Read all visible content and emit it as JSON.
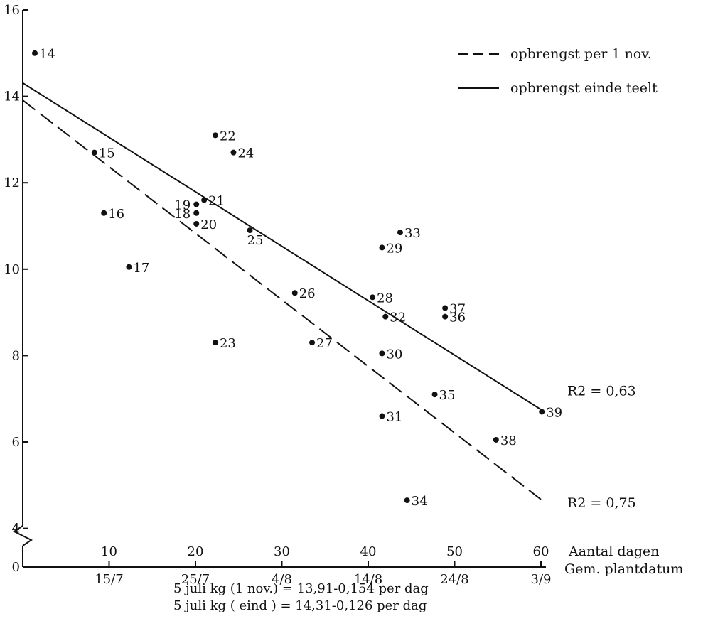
{
  "chart_data": {
    "type": "scatter",
    "x_axis": {
      "primary_ticks": [
        "10",
        "20",
        "30",
        "40",
        "50",
        "60"
      ],
      "primary_title": "Aantal dagen",
      "secondary_ticks": [
        "15/7",
        "25/7",
        "4/8",
        "14/8",
        "24/8",
        "3/9"
      ],
      "secondary_title": "Gem. plantdatum",
      "range": [
        0,
        61
      ]
    },
    "y_axis": {
      "ticks": [
        "16",
        "14",
        "12",
        "10",
        "8",
        "6",
        "4",
        "0"
      ],
      "range": [
        4,
        16
      ],
      "broken": true
    },
    "points": [
      {
        "label": "14",
        "x": 1.4,
        "y": 15.0
      },
      {
        "label": "15",
        "x": 8.3,
        "y": 12.7
      },
      {
        "label": "16",
        "x": 9.4,
        "y": 11.3
      },
      {
        "label": "17",
        "x": 12.3,
        "y": 10.05
      },
      {
        "label": "18",
        "x": 20.1,
        "y": 11.3
      },
      {
        "label": "19",
        "x": 20.1,
        "y": 11.5
      },
      {
        "label": "20",
        "x": 20.1,
        "y": 11.05
      },
      {
        "label": "21",
        "x": 21.0,
        "y": 11.6
      },
      {
        "label": "22",
        "x": 22.3,
        "y": 13.1
      },
      {
        "label": "23",
        "x": 22.3,
        "y": 8.3
      },
      {
        "label": "24",
        "x": 24.4,
        "y": 12.7
      },
      {
        "label": "25",
        "x": 26.3,
        "y": 10.9
      },
      {
        "label": "26",
        "x": 31.5,
        "y": 9.45
      },
      {
        "label": "27",
        "x": 33.5,
        "y": 8.3
      },
      {
        "label": "28",
        "x": 40.5,
        "y": 9.35
      },
      {
        "label": "29",
        "x": 41.6,
        "y": 10.5
      },
      {
        "label": "30",
        "x": 41.6,
        "y": 8.05
      },
      {
        "label": "31",
        "x": 41.6,
        "y": 6.6
      },
      {
        "label": "32",
        "x": 42.0,
        "y": 8.9
      },
      {
        "label": "33",
        "x": 43.7,
        "y": 10.85
      },
      {
        "label": "34",
        "x": 44.5,
        "y": 4.65
      },
      {
        "label": "35",
        "x": 47.7,
        "y": 7.1
      },
      {
        "label": "36",
        "x": 48.9,
        "y": 8.9
      },
      {
        "label": "37",
        "x": 48.9,
        "y": 9.1
      },
      {
        "label": "38",
        "x": 54.8,
        "y": 6.05
      },
      {
        "label": "39",
        "x": 60.1,
        "y": 6.7
      }
    ],
    "lines": [
      {
        "name": "opbrengst per 1 nov.",
        "style": "dashed",
        "intercept": 13.91,
        "slope": -0.154,
        "x_range": [
          0,
          60
        ],
        "r2_label": "R2 = 0,75"
      },
      {
        "name": "opbrengst einde teelt",
        "style": "solid",
        "intercept": 14.31,
        "slope": -0.126,
        "x_range": [
          0,
          60
        ],
        "r2_label": "R2 = 0,63"
      }
    ],
    "legend_position": "top-right",
    "grid": false,
    "formulas": [
      "5 juli kg (1 nov.) = 13,91-0,154 per dag",
      "5 juli kg ( eind ) = 14,31-0,126 per dag"
    ]
  }
}
